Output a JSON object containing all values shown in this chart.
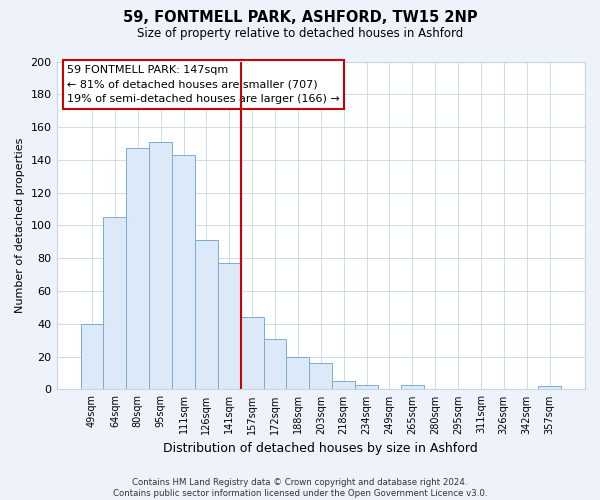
{
  "title": "59, FONTMELL PARK, ASHFORD, TW15 2NP",
  "subtitle": "Size of property relative to detached houses in Ashford",
  "xlabel": "Distribution of detached houses by size in Ashford",
  "ylabel": "Number of detached properties",
  "bar_labels": [
    "49sqm",
    "64sqm",
    "80sqm",
    "95sqm",
    "111sqm",
    "126sqm",
    "141sqm",
    "157sqm",
    "172sqm",
    "188sqm",
    "203sqm",
    "218sqm",
    "234sqm",
    "249sqm",
    "265sqm",
    "280sqm",
    "295sqm",
    "311sqm",
    "326sqm",
    "342sqm",
    "357sqm"
  ],
  "bar_values": [
    40,
    105,
    147,
    151,
    143,
    91,
    77,
    44,
    31,
    20,
    16,
    5,
    3,
    0,
    3,
    0,
    0,
    0,
    0,
    0,
    2
  ],
  "bar_color": "#dce9f8",
  "bar_edge_color": "#7aadd4",
  "vline_x": 6.5,
  "vline_color": "#cc0000",
  "annotation_line1": "59 FONTMELL PARK: 147sqm",
  "annotation_line2": "← 81% of detached houses are smaller (707)",
  "annotation_line3": "19% of semi-detached houses are larger (166) →",
  "annotation_box_color": "#ffffff",
  "annotation_box_edge": "#cc0000",
  "ylim": [
    0,
    200
  ],
  "yticks": [
    0,
    20,
    40,
    60,
    80,
    100,
    120,
    140,
    160,
    180,
    200
  ],
  "footer_line1": "Contains HM Land Registry data © Crown copyright and database right 2024.",
  "footer_line2": "Contains public sector information licensed under the Open Government Licence v3.0.",
  "bg_color": "#eef2fb",
  "plot_bg_color": "#ffffff",
  "grid_color": "#c8d4e8"
}
